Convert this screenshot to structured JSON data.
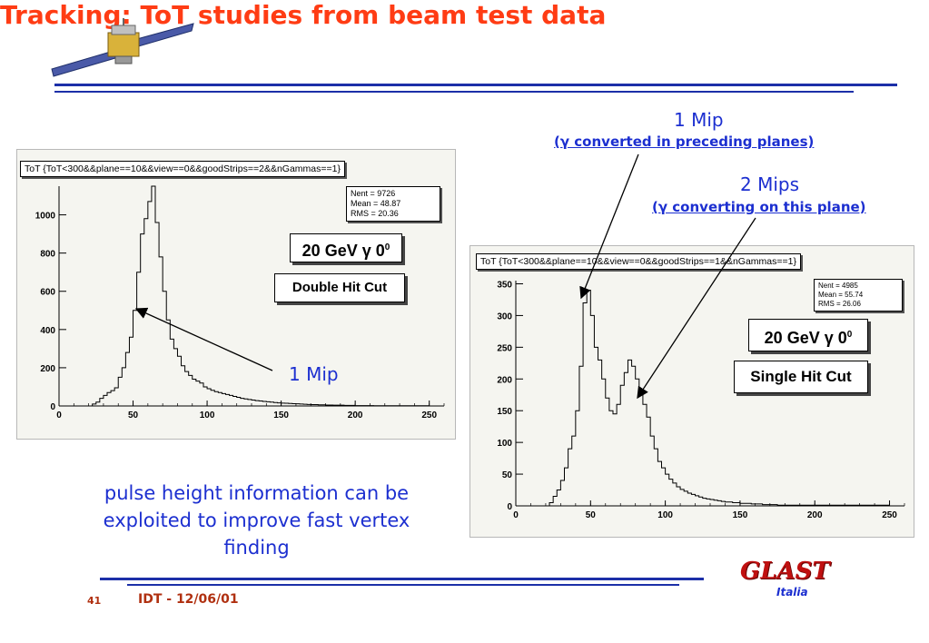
{
  "slide": {
    "title": "Tracking: ToT studies from beam test data",
    "body_text": "pulse height information can be exploited to improve fast vertex finding",
    "footer": {
      "page": "41",
      "event": "IDT - 12/06/01",
      "logo_main": "GLAST",
      "logo_sub": "Italia"
    },
    "colors": {
      "title": "#ff3c14",
      "rule": "#1c2fa8",
      "annotation": "#1c2fd0"
    }
  },
  "annotations": {
    "left_1mip": "1 Mip",
    "right_1mip": "1 Mip",
    "right_1mip_sub": "(γ converted in preceding planes)",
    "right_2mips": "2 Mips",
    "right_2mips_sub": "(γ converting on this plane)"
  },
  "chart_data": [
    {
      "type": "bar",
      "title": "ToT {ToT<300&&plane==10&&view==0&&goodStrips==2&&nGammas==1}",
      "stats": {
        "nent_label": "Nent = 9726",
        "mean_label": "Mean  = 48.87",
        "rms_label": "RMS   = 20.36"
      },
      "energy_label": "20 GeV γ 0",
      "energy_sup": "0",
      "cut_label": "Double Hit Cut",
      "xlim": [
        0,
        260
      ],
      "ylim": [
        0,
        1150
      ],
      "xticks": [
        0,
        50,
        100,
        150,
        200,
        250
      ],
      "yticks": [
        0,
        200,
        400,
        600,
        800,
        1000
      ],
      "bin_width": 2.5,
      "values": [
        0,
        0,
        0,
        0,
        0,
        0,
        0,
        0,
        0,
        10,
        20,
        40,
        55,
        70,
        80,
        95,
        150,
        200,
        280,
        360,
        500,
        700,
        900,
        980,
        1070,
        1150,
        960,
        780,
        600,
        450,
        350,
        300,
        260,
        210,
        180,
        160,
        140,
        130,
        120,
        100,
        90,
        82,
        75,
        70,
        65,
        60,
        55,
        50,
        45,
        40,
        37,
        34,
        31,
        28,
        26,
        24,
        22,
        20,
        18,
        16,
        15,
        14,
        13,
        12,
        11,
        10,
        9,
        8,
        7,
        7,
        6,
        6,
        5,
        5,
        4,
        4,
        4,
        3,
        3,
        3,
        2,
        2,
        2,
        2,
        2,
        1,
        1,
        1,
        1,
        1,
        1,
        1,
        1,
        1,
        1,
        1,
        1,
        1,
        1,
        1
      ]
    },
    {
      "type": "bar",
      "title": "ToT {ToT<300&&plane==10&&view==0&&goodStrips==1&&nGammas==1}",
      "stats": {
        "nent_label": "Nent = 4985",
        "mean_label": "Mean  = 55.74",
        "rms_label": "RMS   = 26.06"
      },
      "energy_label": "20 GeV γ 0",
      "energy_sup": "0",
      "cut_label": "Single Hit Cut",
      "xlim": [
        0,
        260
      ],
      "ylim": [
        0,
        355
      ],
      "xticks": [
        0,
        50,
        100,
        150,
        200,
        250
      ],
      "yticks": [
        0,
        50,
        100,
        150,
        200,
        250,
        300,
        350
      ],
      "bin_width": 2.5,
      "values": [
        0,
        0,
        0,
        0,
        0,
        0,
        0,
        0,
        0,
        5,
        15,
        25,
        40,
        60,
        90,
        110,
        150,
        220,
        320,
        340,
        300,
        250,
        230,
        200,
        170,
        150,
        145,
        160,
        190,
        210,
        230,
        220,
        200,
        180,
        160,
        140,
        110,
        90,
        70,
        60,
        50,
        42,
        36,
        30,
        26,
        23,
        20,
        18,
        16,
        14,
        12,
        11,
        10,
        9,
        8,
        7,
        6,
        6,
        5,
        5,
        4,
        4,
        4,
        3,
        3,
        3,
        2,
        2,
        2,
        2,
        1,
        1,
        1,
        1,
        1,
        1,
        1,
        1,
        1,
        1,
        1,
        1,
        1,
        1,
        1,
        1,
        1,
        1,
        1,
        1,
        1,
        1,
        1,
        1,
        1,
        1,
        1,
        1,
        1,
        1
      ]
    }
  ]
}
